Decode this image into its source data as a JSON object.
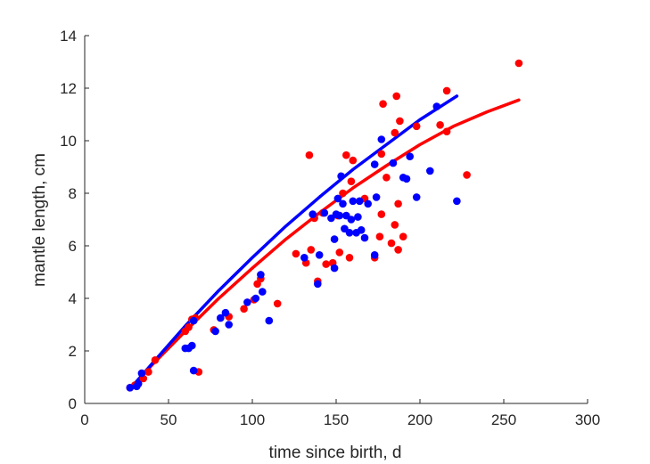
{
  "chart_data": {
    "type": "scatter",
    "xlabel": "time since birth, d",
    "ylabel": "mantle length, cm",
    "xlim": [
      0,
      300
    ],
    "ylim": [
      0,
      14
    ],
    "xticks": [
      0,
      50,
      100,
      150,
      200,
      250,
      300
    ],
    "yticks": [
      0,
      2,
      4,
      6,
      8,
      10,
      12,
      14
    ],
    "grid": false,
    "series": [
      {
        "color": "#ff0000",
        "kind": "scatter",
        "points": [
          [
            27,
            0.6
          ],
          [
            30,
            0.7
          ],
          [
            35,
            0.95
          ],
          [
            38,
            1.2
          ],
          [
            42,
            1.65
          ],
          [
            60,
            2.75
          ],
          [
            62,
            2.9
          ],
          [
            64,
            3.2
          ],
          [
            66,
            3.25
          ],
          [
            68,
            1.2
          ],
          [
            77,
            2.8
          ],
          [
            86,
            3.3
          ],
          [
            95,
            3.6
          ],
          [
            101,
            3.95
          ],
          [
            103,
            4.55
          ],
          [
            105,
            4.75
          ],
          [
            115,
            3.8
          ],
          [
            126,
            5.7
          ],
          [
            132,
            5.35
          ],
          [
            134,
            9.45
          ],
          [
            135,
            5.85
          ],
          [
            137,
            7.05
          ],
          [
            139,
            4.65
          ],
          [
            142,
            7.25
          ],
          [
            144,
            5.3
          ],
          [
            148,
            5.35
          ],
          [
            151,
            7.15
          ],
          [
            152,
            5.75
          ],
          [
            154,
            8.0
          ],
          [
            156,
            9.45
          ],
          [
            158,
            5.55
          ],
          [
            159,
            8.45
          ],
          [
            160,
            9.25
          ],
          [
            167,
            7.8
          ],
          [
            173,
            5.55
          ],
          [
            176,
            6.35
          ],
          [
            177,
            7.2
          ],
          [
            177,
            9.5
          ],
          [
            178,
            11.4
          ],
          [
            180,
            8.6
          ],
          [
            183,
            6.1
          ],
          [
            185,
            6.8
          ],
          [
            185,
            10.3
          ],
          [
            186,
            11.7
          ],
          [
            187,
            5.85
          ],
          [
            187,
            7.6
          ],
          [
            188,
            10.75
          ],
          [
            190,
            6.35
          ],
          [
            198,
            10.55
          ],
          [
            212,
            10.6
          ],
          [
            216,
            11.9
          ],
          [
            216,
            10.35
          ],
          [
            228,
            8.7
          ],
          [
            259,
            12.95
          ]
        ]
      },
      {
        "color": "#0000ff",
        "kind": "scatter",
        "points": [
          [
            27,
            0.6
          ],
          [
            31,
            0.65
          ],
          [
            32,
            0.75
          ],
          [
            34,
            1.15
          ],
          [
            60,
            2.1
          ],
          [
            62,
            2.1
          ],
          [
            64,
            2.2
          ],
          [
            65,
            1.25
          ],
          [
            65,
            3.15
          ],
          [
            78,
            2.75
          ],
          [
            81,
            3.25
          ],
          [
            84,
            3.45
          ],
          [
            86,
            3.0
          ],
          [
            97,
            3.85
          ],
          [
            102,
            4.0
          ],
          [
            105,
            4.9
          ],
          [
            106,
            4.25
          ],
          [
            110,
            3.15
          ],
          [
            131,
            5.55
          ],
          [
            136,
            7.2
          ],
          [
            139,
            4.55
          ],
          [
            140,
            5.65
          ],
          [
            143,
            7.25
          ],
          [
            147,
            7.05
          ],
          [
            149,
            5.15
          ],
          [
            149,
            6.25
          ],
          [
            150,
            7.2
          ],
          [
            151,
            7.8
          ],
          [
            152,
            7.15
          ],
          [
            153,
            8.65
          ],
          [
            154,
            7.6
          ],
          [
            155,
            6.65
          ],
          [
            156,
            7.15
          ],
          [
            158,
            6.5
          ],
          [
            159,
            7.0
          ],
          [
            160,
            7.7
          ],
          [
            162,
            6.5
          ],
          [
            163,
            7.1
          ],
          [
            164,
            7.7
          ],
          [
            165,
            6.6
          ],
          [
            167,
            6.3
          ],
          [
            169,
            7.6
          ],
          [
            173,
            5.65
          ],
          [
            173,
            9.1
          ],
          [
            174,
            7.85
          ],
          [
            177,
            10.05
          ],
          [
            184,
            9.15
          ],
          [
            190,
            8.6
          ],
          [
            192,
            8.55
          ],
          [
            194,
            9.4
          ],
          [
            198,
            7.85
          ],
          [
            206,
            8.85
          ],
          [
            210,
            11.3
          ],
          [
            222,
            7.7
          ]
        ]
      },
      {
        "color": "#ff0000",
        "kind": "line",
        "points": [
          [
            27,
            0.55
          ],
          [
            40,
            1.45
          ],
          [
            60,
            2.75
          ],
          [
            80,
            4.0
          ],
          [
            100,
            5.15
          ],
          [
            120,
            6.25
          ],
          [
            140,
            7.25
          ],
          [
            160,
            8.2
          ],
          [
            180,
            9.05
          ],
          [
            200,
            9.85
          ],
          [
            220,
            10.55
          ],
          [
            240,
            11.1
          ],
          [
            259,
            11.55
          ]
        ]
      },
      {
        "color": "#0000ff",
        "kind": "line",
        "points": [
          [
            27,
            0.55
          ],
          [
            40,
            1.5
          ],
          [
            60,
            2.95
          ],
          [
            80,
            4.3
          ],
          [
            100,
            5.55
          ],
          [
            120,
            6.75
          ],
          [
            140,
            7.85
          ],
          [
            160,
            8.9
          ],
          [
            180,
            9.85
          ],
          [
            200,
            10.8
          ],
          [
            222,
            11.7
          ]
        ]
      }
    ]
  }
}
